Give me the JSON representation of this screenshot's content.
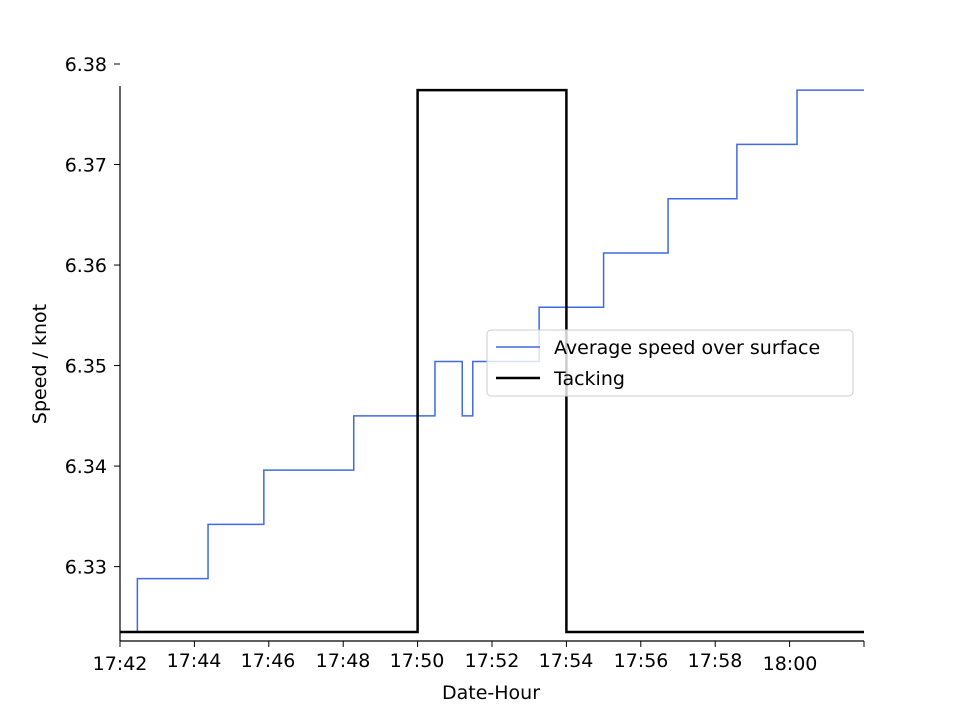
{
  "chart_data": {
    "type": "line",
    "title": "",
    "xlabel": "Date-Hour",
    "ylabel": "Speed / knot",
    "xlim": [
      "17:42",
      "18:02"
    ],
    "ylim": [
      6.3226,
      6.38
    ],
    "x_ticks": [
      "17:42",
      "17:44",
      "17:46",
      "17:48",
      "17:50",
      "17:52",
      "17:54",
      "17:56",
      "17:58",
      "18:00"
    ],
    "y_ticks": [
      "6.33",
      "6.34",
      "6.35",
      "6.36",
      "6.37",
      "6.38"
    ],
    "grid": false,
    "legend": {
      "placement": "center-right",
      "entries": [
        "Average speed over surface",
        "Tacking"
      ]
    },
    "series": [
      {
        "name": "Average speed over surface",
        "color": "#4169e1",
        "step": true,
        "x": [
          "17:42:28",
          "17:42:28",
          "17:44:22",
          "17:44:22",
          "17:45:52",
          "17:45:52",
          "17:48:17",
          "17:48:17",
          "17:50:28",
          "17:50:28",
          "17:51:12",
          "17:51:12",
          "17:51:29",
          "17:51:29",
          "17:53:16",
          "17:53:16",
          "17:55:00",
          "17:55:00",
          "17:56:44",
          "17:56:44",
          "17:58:35",
          "17:58:35",
          "18:00:12",
          "18:00:12",
          "18:02:00"
        ],
        "y": [
          6.3235,
          6.3288,
          6.3288,
          6.3342,
          6.3342,
          6.3396,
          6.3396,
          6.345,
          6.345,
          6.3504,
          6.3504,
          6.345,
          6.345,
          6.3504,
          6.3504,
          6.3558,
          6.3558,
          6.3612,
          6.3612,
          6.3666,
          6.3666,
          6.372,
          6.372,
          6.3774,
          6.3774
        ]
      },
      {
        "name": "Tacking",
        "color": "#000000",
        "step": true,
        "x": [
          "17:42:00",
          "17:50:00",
          "17:50:00",
          "17:54:00",
          "17:54:00",
          "18:02:00"
        ],
        "y": [
          6.3235,
          6.3235,
          6.3774,
          6.3774,
          6.3235,
          6.3235
        ]
      }
    ]
  }
}
